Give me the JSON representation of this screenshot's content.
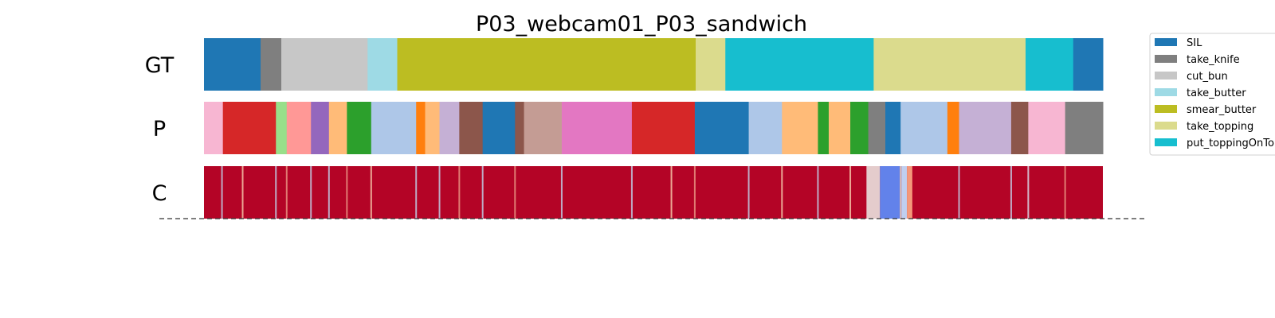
{
  "chart_data": {
    "type": "segmentation-timeline",
    "title": "P03_webcam01_P03_sandwich",
    "rows": [
      {
        "label": "GT",
        "segments": [
          {
            "start": 0.0,
            "end": 0.063,
            "color": "#1f77b4"
          },
          {
            "start": 0.063,
            "end": 0.086,
            "color": "#7f7f7f"
          },
          {
            "start": 0.086,
            "end": 0.182,
            "color": "#c7c7c7"
          },
          {
            "start": 0.182,
            "end": 0.215,
            "color": "#9edae5"
          },
          {
            "start": 0.215,
            "end": 0.547,
            "color": "#bcbd22"
          },
          {
            "start": 0.547,
            "end": 0.58,
            "color": "#dbdb8d"
          },
          {
            "start": 0.58,
            "end": 0.745,
            "color": "#17becf"
          },
          {
            "start": 0.745,
            "end": 0.914,
            "color": "#dbdb8d"
          },
          {
            "start": 0.914,
            "end": 0.967,
            "color": "#17becf"
          },
          {
            "start": 0.967,
            "end": 1.0,
            "color": "#1f77b4"
          }
        ]
      },
      {
        "label": "P",
        "segments": [
          {
            "start": 0.0,
            "end": 0.021,
            "color": "#f7b6d2"
          },
          {
            "start": 0.021,
            "end": 0.08,
            "color": "#d62728"
          },
          {
            "start": 0.08,
            "end": 0.092,
            "color": "#98df8a"
          },
          {
            "start": 0.092,
            "end": 0.119,
            "color": "#ff9896"
          },
          {
            "start": 0.119,
            "end": 0.139,
            "color": "#9467bd"
          },
          {
            "start": 0.139,
            "end": 0.159,
            "color": "#ffbb78"
          },
          {
            "start": 0.159,
            "end": 0.186,
            "color": "#2ca02c"
          },
          {
            "start": 0.186,
            "end": 0.236,
            "color": "#aec7e8"
          },
          {
            "start": 0.236,
            "end": 0.246,
            "color": "#ff7f0e"
          },
          {
            "start": 0.246,
            "end": 0.262,
            "color": "#ffbb78"
          },
          {
            "start": 0.262,
            "end": 0.284,
            "color": "#c5b0d5"
          },
          {
            "start": 0.284,
            "end": 0.31,
            "color": "#8c564b"
          },
          {
            "start": 0.31,
            "end": 0.346,
            "color": "#1f77b4"
          },
          {
            "start": 0.346,
            "end": 0.356,
            "color": "#8c564b"
          },
          {
            "start": 0.356,
            "end": 0.398,
            "color": "#c49c94"
          },
          {
            "start": 0.398,
            "end": 0.476,
            "color": "#e377c2"
          },
          {
            "start": 0.476,
            "end": 0.546,
            "color": "#d62728"
          },
          {
            "start": 0.546,
            "end": 0.606,
            "color": "#1f77b4"
          },
          {
            "start": 0.606,
            "end": 0.643,
            "color": "#aec7e8"
          },
          {
            "start": 0.643,
            "end": 0.683,
            "color": "#ffbb78"
          },
          {
            "start": 0.683,
            "end": 0.695,
            "color": "#2ca02c"
          },
          {
            "start": 0.695,
            "end": 0.719,
            "color": "#ffbb78"
          },
          {
            "start": 0.719,
            "end": 0.739,
            "color": "#2ca02c"
          },
          {
            "start": 0.739,
            "end": 0.758,
            "color": "#7f7f7f"
          },
          {
            "start": 0.758,
            "end": 0.775,
            "color": "#1f77b4"
          },
          {
            "start": 0.775,
            "end": 0.827,
            "color": "#aec7e8"
          },
          {
            "start": 0.827,
            "end": 0.84,
            "color": "#ff7f0e"
          },
          {
            "start": 0.84,
            "end": 0.898,
            "color": "#c5b0d5"
          },
          {
            "start": 0.898,
            "end": 0.917,
            "color": "#8c564b"
          },
          {
            "start": 0.917,
            "end": 0.958,
            "color": "#f7b6d2"
          },
          {
            "start": 0.958,
            "end": 1.0,
            "color": "#7f7f7f"
          }
        ]
      },
      {
        "label": "C",
        "base_color": "#b40426",
        "highlights": [
          {
            "pos": 0.02,
            "color": "#c0c8e0"
          },
          {
            "pos": 0.043,
            "color": "#f4c4a8"
          },
          {
            "pos": 0.08,
            "color": "#c0c8e0"
          },
          {
            "pos": 0.092,
            "color": "#e89080"
          },
          {
            "pos": 0.119,
            "color": "#c0c8e0"
          },
          {
            "pos": 0.139,
            "color": "#c0c8e0"
          },
          {
            "pos": 0.159,
            "color": "#e89080"
          },
          {
            "pos": 0.186,
            "color": "#f4c4a8"
          },
          {
            "pos": 0.236,
            "color": "#c0c8e0"
          },
          {
            "pos": 0.262,
            "color": "#c0c8e0"
          },
          {
            "pos": 0.284,
            "color": "#e89080"
          },
          {
            "pos": 0.31,
            "color": "#c0c8e0"
          },
          {
            "pos": 0.346,
            "color": "#e89080"
          },
          {
            "pos": 0.398,
            "color": "#c0c8e0"
          },
          {
            "pos": 0.476,
            "color": "#c0c8e0"
          },
          {
            "pos": 0.52,
            "color": "#f4c4a8"
          },
          {
            "pos": 0.546,
            "color": "#e89080"
          },
          {
            "pos": 0.606,
            "color": "#c0c8e0"
          },
          {
            "pos": 0.643,
            "color": "#f4c4a8"
          },
          {
            "pos": 0.683,
            "color": "#c0c8e0"
          },
          {
            "pos": 0.719,
            "color": "#f4c4a8"
          },
          {
            "pos": 0.775,
            "color": "#f4c4a8"
          },
          {
            "pos": 0.84,
            "color": "#c0c8e0"
          },
          {
            "pos": 0.898,
            "color": "#c0c8e0"
          },
          {
            "pos": 0.917,
            "color": "#d8d8e8"
          },
          {
            "pos": 0.958,
            "color": "#e89080"
          }
        ],
        "low_regions": [
          {
            "start": 0.737,
            "end": 0.752,
            "color": "#e4cccc"
          },
          {
            "start": 0.752,
            "end": 0.776,
            "color": "#6282ea"
          },
          {
            "start": 0.776,
            "end": 0.782,
            "color": "#c0cff0"
          },
          {
            "start": 0.782,
            "end": 0.788,
            "color": "#f4987a"
          }
        ]
      }
    ],
    "legend": {
      "position": "right",
      "entries": [
        {
          "name": "SIL",
          "color": "#1f77b4"
        },
        {
          "name": "take_knife",
          "color": "#7f7f7f"
        },
        {
          "name": "cut_bun",
          "color": "#c7c7c7"
        },
        {
          "name": "take_butter",
          "color": "#9edae5"
        },
        {
          "name": "smear_butter",
          "color": "#bcbd22"
        },
        {
          "name": "take_topping",
          "color": "#dbdb8d"
        },
        {
          "name": "put_toppingOnTo",
          "color": "#17becf"
        }
      ]
    }
  }
}
